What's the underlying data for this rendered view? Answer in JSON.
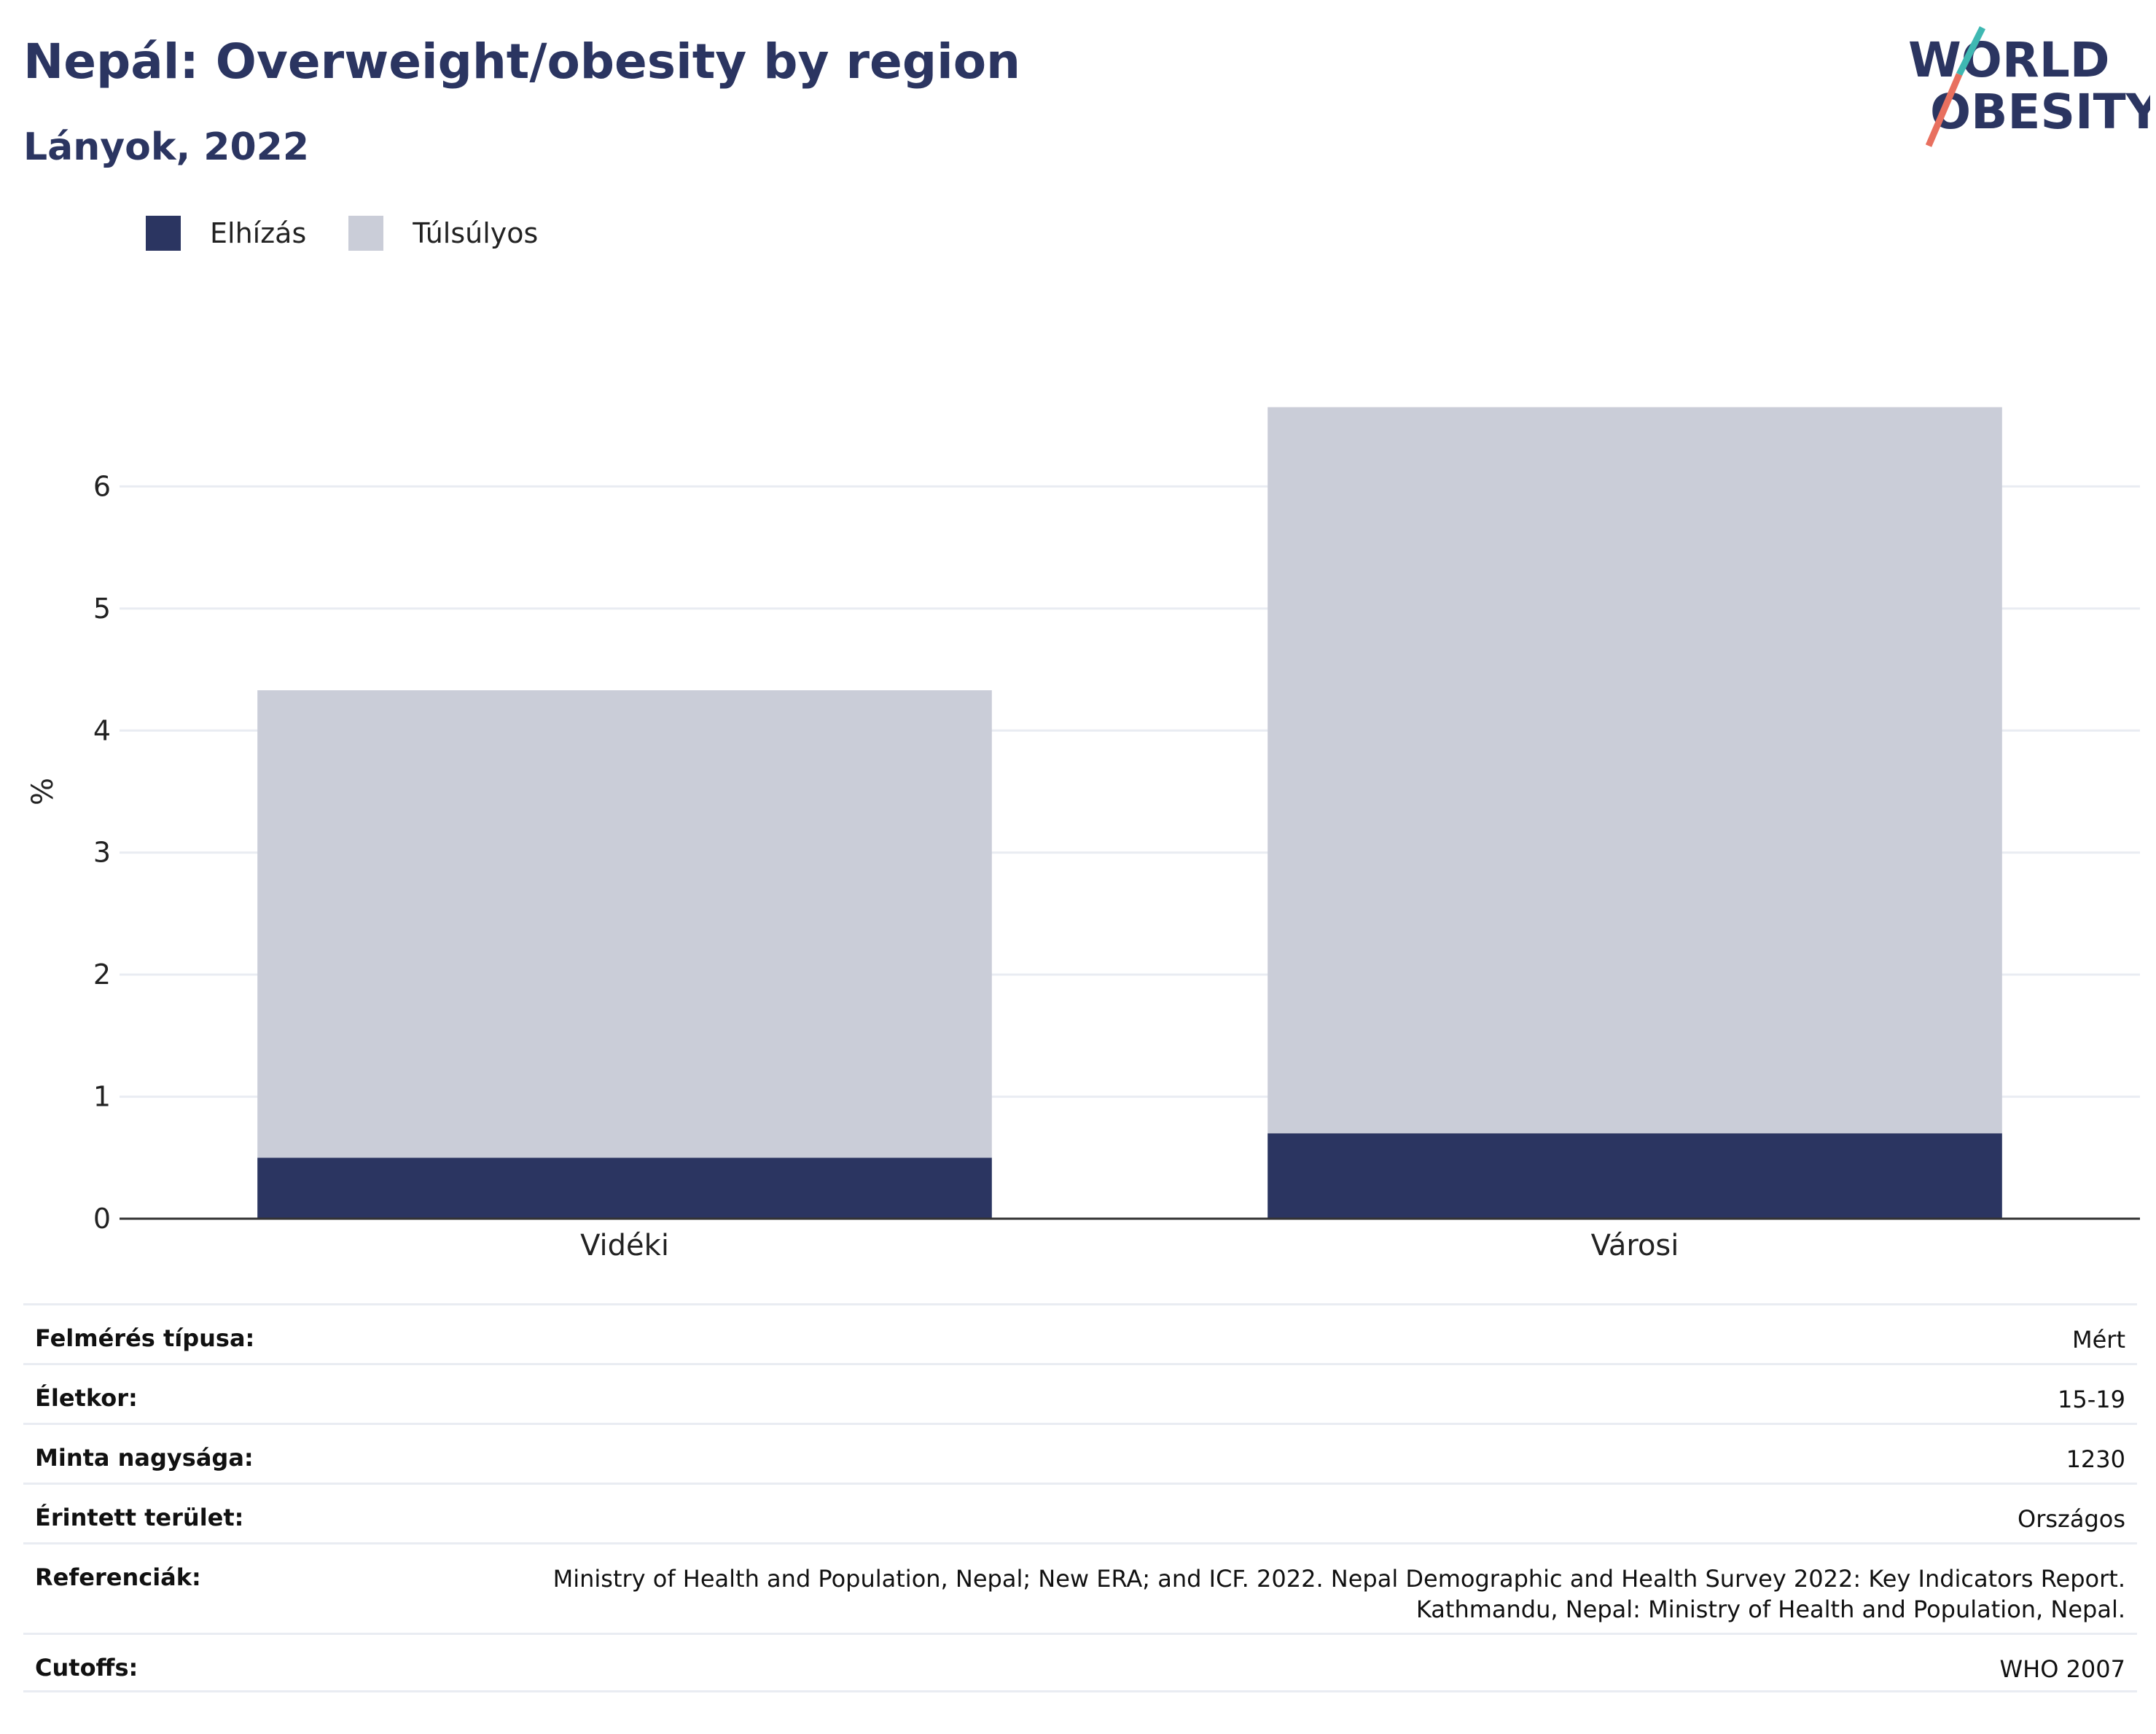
{
  "header": {
    "title": "Nepál: Overweight/obesity by region",
    "subtitle": "Lányok, 2022",
    "logo_line1": "WORLD",
    "logo_line2": "OBESITY"
  },
  "colors": {
    "obesity": "#2b3561",
    "overweight": "#cacdd8",
    "axis": "#333333",
    "grid": "#e9ecf2",
    "logo_teal": "#3fb8b2",
    "logo_coral": "#e8705f"
  },
  "chart_data": {
    "type": "bar",
    "stacked": true,
    "categories": [
      "Vidéki",
      "Városi"
    ],
    "series": [
      {
        "name": "Elhízás",
        "values": [
          0.5,
          0.7
        ]
      },
      {
        "name": "Túlsúlyos",
        "values": [
          3.83,
          5.95
        ]
      }
    ],
    "ylabel": "%",
    "ylim": [
      0,
      7
    ],
    "yticks": [
      0,
      1,
      2,
      3,
      4,
      5,
      6
    ],
    "grid": true,
    "legend_position": "top-left"
  },
  "info_table": [
    {
      "label": "Felmérés típusa:",
      "value": [
        "Mért"
      ]
    },
    {
      "label": "Életkor:",
      "value": [
        "15-19"
      ]
    },
    {
      "label": "Minta nagysága:",
      "value": [
        "1230"
      ]
    },
    {
      "label": "Érintett terület:",
      "value": [
        "Országos"
      ]
    },
    {
      "label": "Referenciák:",
      "value": [
        "Ministry of Health and Population, Nepal; New ERA; and ICF. 2022. Nepal Demographic and Health Survey 2022: Key Indicators Report.",
        "Kathmandu, Nepal: Ministry of Health and Population, Nepal."
      ]
    },
    {
      "label": "Cutoffs:",
      "value": [
        "WHO 2007"
      ]
    }
  ]
}
